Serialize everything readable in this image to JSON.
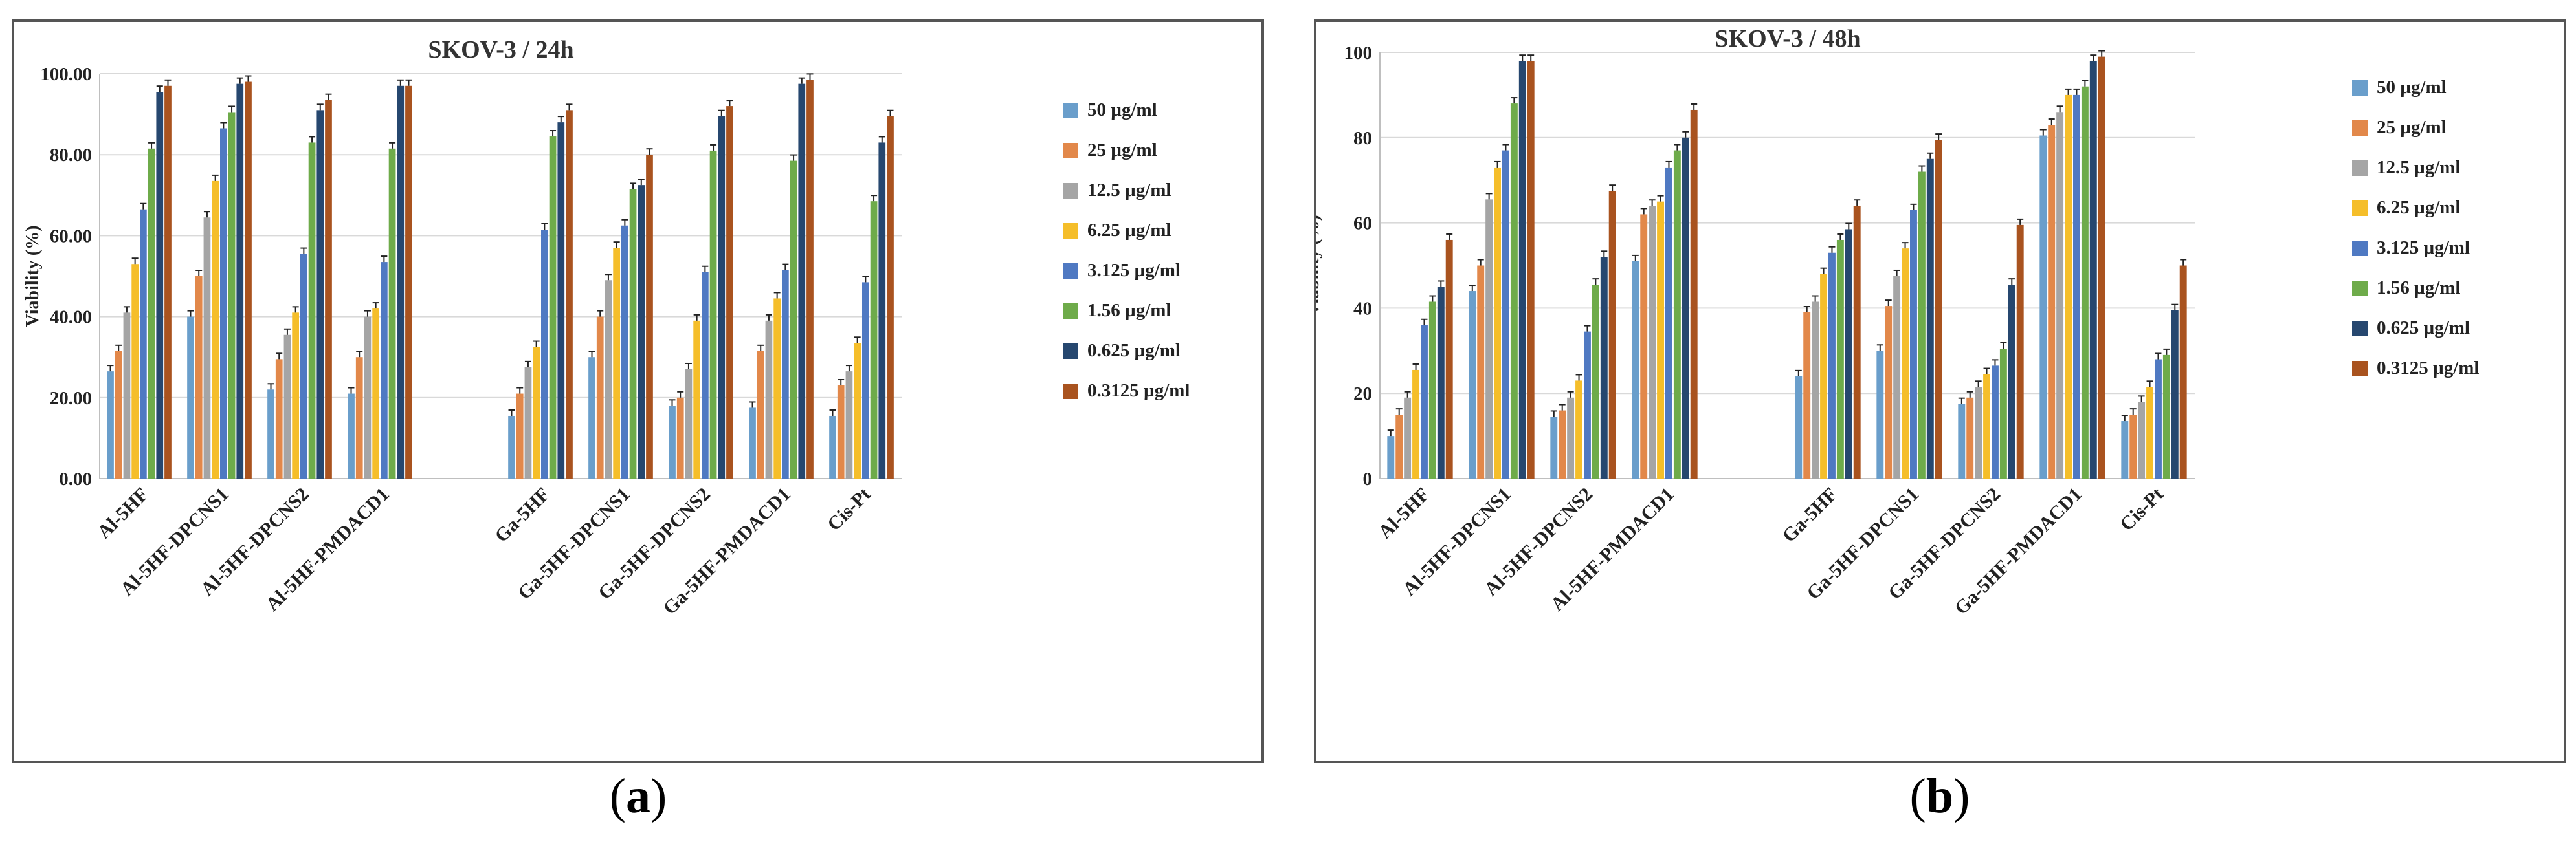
{
  "series_names": [
    "50 µg/ml",
    "25 µg/ml",
    "12.5 µg/ml",
    "6.25 µg/ml",
    "3.125 µg/ml",
    "1.56 µg/ml",
    "0.625 µg/ml",
    "0.3125 µg/ml"
  ],
  "series_colors": [
    "#6A9ECB",
    "#E2884A",
    "#A5A5A5",
    "#F5BE2A",
    "#4F79C2",
    "#6EAB4A",
    "#26476F",
    "#A9531F"
  ],
  "panels": [
    {
      "label_letter": "a"
    },
    {
      "label_letter": "b"
    }
  ],
  "chart_data": [
    {
      "type": "bar",
      "title": "SKOV-3 / 24h",
      "ylabel": "Viability (%)",
      "xlabel": "",
      "ylim": [
        0,
        100
      ],
      "yticks": [
        0,
        20,
        40,
        60,
        80,
        100
      ],
      "ytick_labels": [
        "0.00",
        "20.00",
        "40.00",
        "60.00",
        "80.00",
        "100.00"
      ],
      "grid": true,
      "legend_position": "right",
      "categories": [
        "Al-5HF",
        "Al-5HF-DPCNS1",
        "Al-5HF-DPCNS2",
        "Al-5HF-PMDACD1",
        "",
        "Ga-5HF",
        "Ga-5HF-DPCNS1",
        "Ga-5HF-DPCNS2",
        "Ga-5HF-PMDACD1",
        "Cis-Pt"
      ],
      "series": [
        {
          "name": "50 µg/ml",
          "values": [
            26.5,
            40,
            22,
            21,
            null,
            15.5,
            30,
            18,
            17.5,
            15.5
          ]
        },
        {
          "name": "25 µg/ml",
          "values": [
            31.5,
            50,
            29.5,
            30,
            null,
            21,
            40,
            20,
            31.5,
            23
          ]
        },
        {
          "name": "12.5 µg/ml",
          "values": [
            41,
            64.5,
            35.5,
            40,
            null,
            27.5,
            49,
            27,
            39,
            26.5
          ]
        },
        {
          "name": "6.25 µg/ml",
          "values": [
            53,
            73.5,
            41,
            42,
            null,
            32.5,
            57,
            39,
            44.5,
            33.5
          ]
        },
        {
          "name": "3.125 µg/ml",
          "values": [
            66.5,
            86.5,
            55.5,
            53.5,
            null,
            61.5,
            62.5,
            51,
            51.5,
            48.5
          ]
        },
        {
          "name": "1.56 µg/ml",
          "values": [
            81.5,
            90.5,
            83,
            81.5,
            null,
            84.5,
            71.5,
            81,
            78.5,
            68.5
          ]
        },
        {
          "name": "0.625 µg/ml",
          "values": [
            95.5,
            97.5,
            91,
            97,
            null,
            88,
            72.5,
            89.5,
            97.5,
            83
          ]
        },
        {
          "name": "0.3125 µg/ml",
          "values": [
            97,
            98,
            93.5,
            97,
            null,
            91,
            80,
            92,
            98.5,
            89.5
          ]
        }
      ]
    },
    {
      "type": "bar",
      "title": "SKOV-3 / 48h",
      "ylabel": "Viability (%)",
      "xlabel": "",
      "ylim": [
        0,
        100
      ],
      "yticks": [
        0,
        20,
        40,
        60,
        80,
        100
      ],
      "ytick_labels": [
        "0",
        "20",
        "40",
        "60",
        "80",
        "100"
      ],
      "grid": true,
      "legend_position": "right",
      "categories": [
        "Al-5HF",
        "Al-5HF-DPCNS1",
        "Al-5HF-DPCNS2",
        "Al-5HF-PMDACD1",
        "",
        "Ga-5HF",
        "Ga-5HF-DPCNS1",
        "Ga-5HF-DPCNS2",
        "Ga-5HF-PMDACD1",
        "Cis-Pt"
      ],
      "series": [
        {
          "name": "50 µg/ml",
          "values": [
            10,
            44,
            14.5,
            51,
            null,
            24,
            30,
            17.5,
            80.5,
            13.5
          ]
        },
        {
          "name": "25 µg/ml",
          "values": [
            15,
            50,
            16,
            62,
            null,
            39,
            40.5,
            19,
            83,
            15
          ]
        },
        {
          "name": "12.5 µg/ml",
          "values": [
            19,
            65.5,
            19,
            64,
            null,
            41.5,
            47.5,
            21.5,
            86,
            18
          ]
        },
        {
          "name": "6.25 µg/ml",
          "values": [
            25.5,
            73,
            23,
            65,
            null,
            48,
            54,
            24.5,
            90,
            21.5
          ]
        },
        {
          "name": "3.125 µg/ml",
          "values": [
            36,
            77,
            34.5,
            73,
            null,
            53,
            63,
            26.5,
            90,
            28
          ]
        },
        {
          "name": "1.56 µg/ml",
          "values": [
            41.5,
            88,
            45.5,
            77,
            null,
            56,
            72,
            30.5,
            92,
            29
          ]
        },
        {
          "name": "0.625 µg/ml",
          "values": [
            45,
            98,
            52,
            80,
            null,
            58.5,
            75,
            45.5,
            98,
            39.5
          ]
        },
        {
          "name": "0.3125 µg/ml",
          "values": [
            56,
            98,
            67.5,
            86.5,
            null,
            64,
            79.5,
            59.5,
            99,
            50
          ]
        }
      ]
    }
  ]
}
